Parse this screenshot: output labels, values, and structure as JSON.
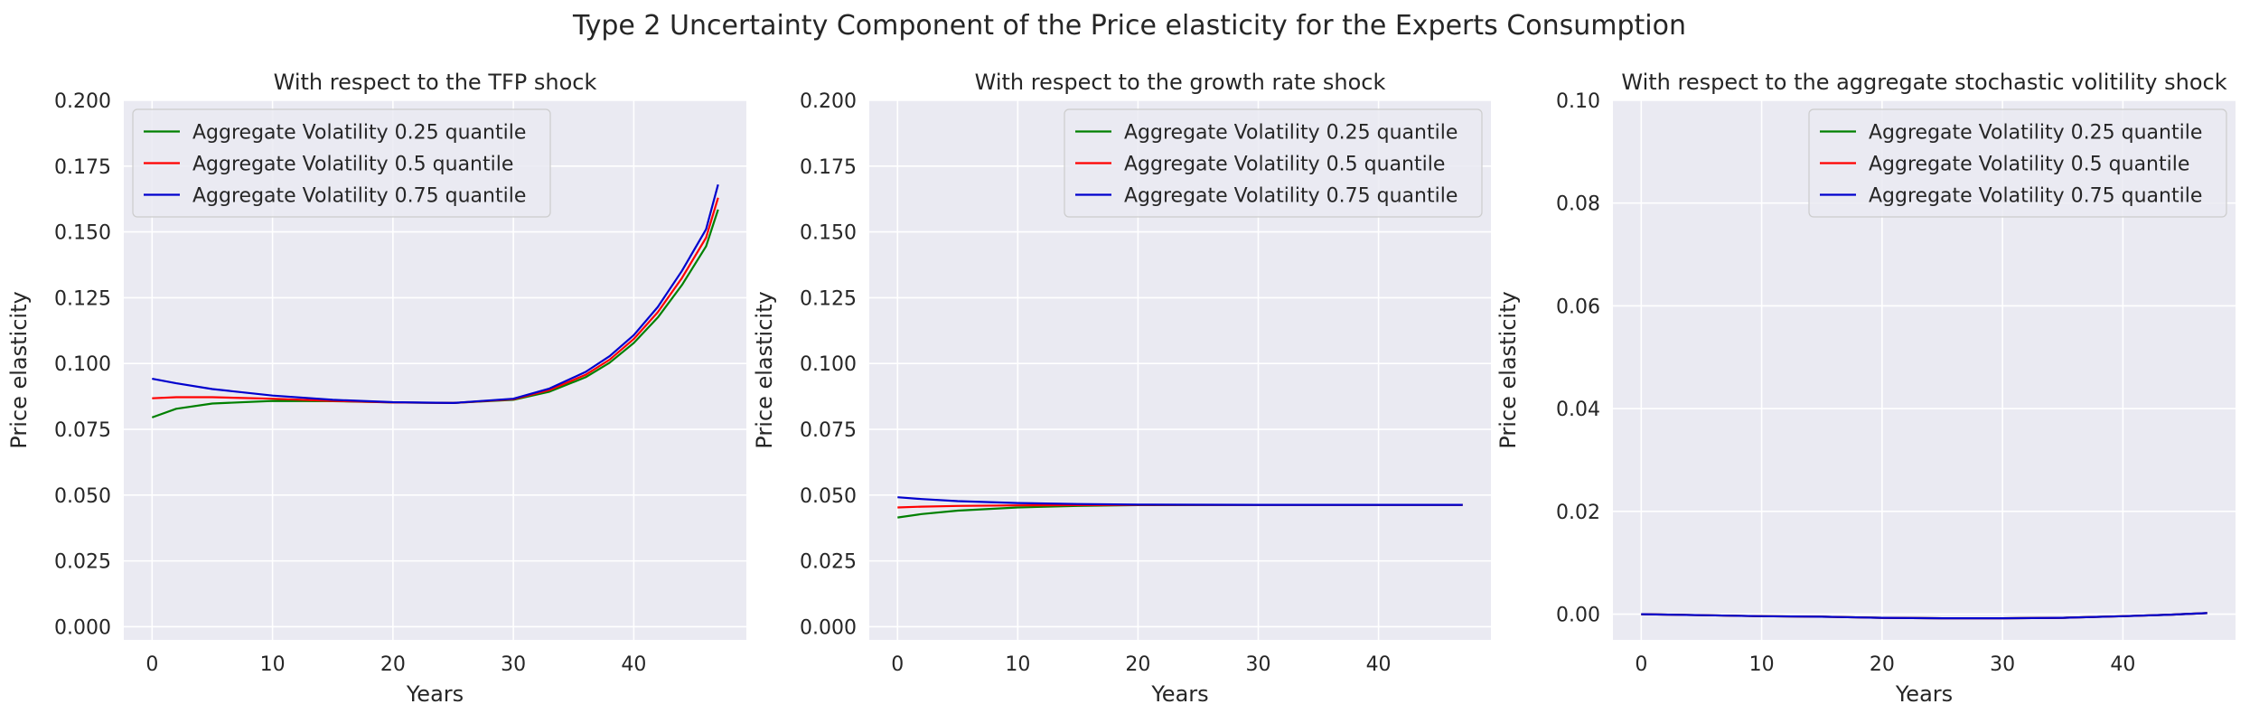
{
  "figure": {
    "suptitle": "Type 2 Uncertainty Component of the Price elasticity for the Experts Consumption"
  },
  "chart_data": [
    {
      "type": "line",
      "title": "With respect to the TFP shock",
      "xlabel": "Years",
      "ylabel": "Price elasticity",
      "xlim": [
        -2.35,
        49.35
      ],
      "ylim": [
        -0.005,
        0.2
      ],
      "xticks": [
        "0",
        "10",
        "20",
        "30",
        "40"
      ],
      "yticks": [
        "0.000",
        "0.025",
        "0.050",
        "0.075",
        "0.100",
        "0.125",
        "0.150",
        "0.175",
        "0.200"
      ],
      "legend_position": "upper left",
      "grid": true,
      "x": [
        0,
        2,
        5,
        10,
        15,
        20,
        25,
        30,
        33,
        36,
        38,
        40,
        42,
        44,
        46,
        47
      ],
      "series": [
        {
          "name": "Aggregate Volatility 0.25 quantile",
          "color": "#008000",
          "values": [
            0.0795,
            0.0828,
            0.0848,
            0.0858,
            0.0857,
            0.0852,
            0.085,
            0.0862,
            0.0893,
            0.0948,
            0.1003,
            0.1078,
            0.1175,
            0.1298,
            0.1445,
            0.1585
          ]
        },
        {
          "name": "Aggregate Volatility 0.5 quantile",
          "color": "#ff0000",
          "values": [
            0.0868,
            0.0872,
            0.0872,
            0.0866,
            0.0858,
            0.0852,
            0.085,
            0.0864,
            0.0899,
            0.0957,
            0.1015,
            0.1093,
            0.1195,
            0.1325,
            0.1478,
            0.163
          ]
        },
        {
          "name": "Aggregate Volatility 0.75 quantile",
          "color": "#0000cd",
          "values": [
            0.0942,
            0.0925,
            0.0903,
            0.0878,
            0.0862,
            0.0853,
            0.085,
            0.0866,
            0.0905,
            0.0968,
            0.1028,
            0.1108,
            0.1215,
            0.1352,
            0.151,
            0.168
          ]
        }
      ]
    },
    {
      "type": "line",
      "title": "With respect to the growth rate shock",
      "xlabel": "Years",
      "ylabel": "Price elasticity",
      "xlim": [
        -2.35,
        49.35
      ],
      "ylim": [
        -0.005,
        0.2
      ],
      "xticks": [
        "0",
        "10",
        "20",
        "30",
        "40"
      ],
      "yticks": [
        "0.000",
        "0.025",
        "0.050",
        "0.075",
        "0.100",
        "0.125",
        "0.150",
        "0.175",
        "0.200"
      ],
      "legend_position": "upper right",
      "grid": true,
      "x": [
        0,
        2,
        5,
        10,
        15,
        20,
        30,
        40,
        47
      ],
      "series": [
        {
          "name": "Aggregate Volatility 0.25 quantile",
          "color": "#008000",
          "values": [
            0.0415,
            0.0428,
            0.0441,
            0.0453,
            0.0459,
            0.0462,
            0.0463,
            0.0463,
            0.0463
          ]
        },
        {
          "name": "Aggregate Volatility 0.5 quantile",
          "color": "#ff0000",
          "values": [
            0.0453,
            0.0456,
            0.0459,
            0.0461,
            0.0462,
            0.0463,
            0.0463,
            0.0463,
            0.0463
          ]
        },
        {
          "name": "Aggregate Volatility 0.75 quantile",
          "color": "#0000cd",
          "values": [
            0.0492,
            0.0485,
            0.0477,
            0.047,
            0.0466,
            0.0464,
            0.0463,
            0.0463,
            0.0463
          ]
        }
      ]
    },
    {
      "type": "line",
      "title": "With respect to the aggregate stochastic volitility shock",
      "xlabel": "Years",
      "ylabel": "Price elasticity",
      "xlim": [
        -2.35,
        49.35
      ],
      "ylim": [
        -0.005,
        0.1
      ],
      "xticks": [
        "0",
        "10",
        "20",
        "30",
        "40"
      ],
      "yticks": [
        "0.00",
        "0.02",
        "0.04",
        "0.06",
        "0.08",
        "0.10"
      ],
      "legend_position": "upper right",
      "grid": true,
      "x": [
        0,
        5,
        10,
        15,
        20,
        25,
        30,
        35,
        40,
        44,
        47
      ],
      "series": [
        {
          "name": "Aggregate Volatility 0.25 quantile",
          "color": "#008000",
          "values": [
            0.0,
            -0.0002,
            -0.0004,
            -0.0005,
            -0.0007,
            -0.0008,
            -0.0008,
            -0.0007,
            -0.0004,
            -0.0001,
            0.0002
          ]
        },
        {
          "name": "Aggregate Volatility 0.5 quantile",
          "color": "#ff0000",
          "values": [
            0.0,
            -0.0002,
            -0.0004,
            -0.0005,
            -0.0007,
            -0.0008,
            -0.0008,
            -0.0007,
            -0.0004,
            -0.0001,
            0.0002
          ]
        },
        {
          "name": "Aggregate Volatility 0.75 quantile",
          "color": "#0000cd",
          "values": [
            0.0,
            -0.0002,
            -0.0004,
            -0.0005,
            -0.0007,
            -0.0008,
            -0.0008,
            -0.0007,
            -0.0004,
            -0.0001,
            0.0002
          ]
        }
      ]
    }
  ]
}
